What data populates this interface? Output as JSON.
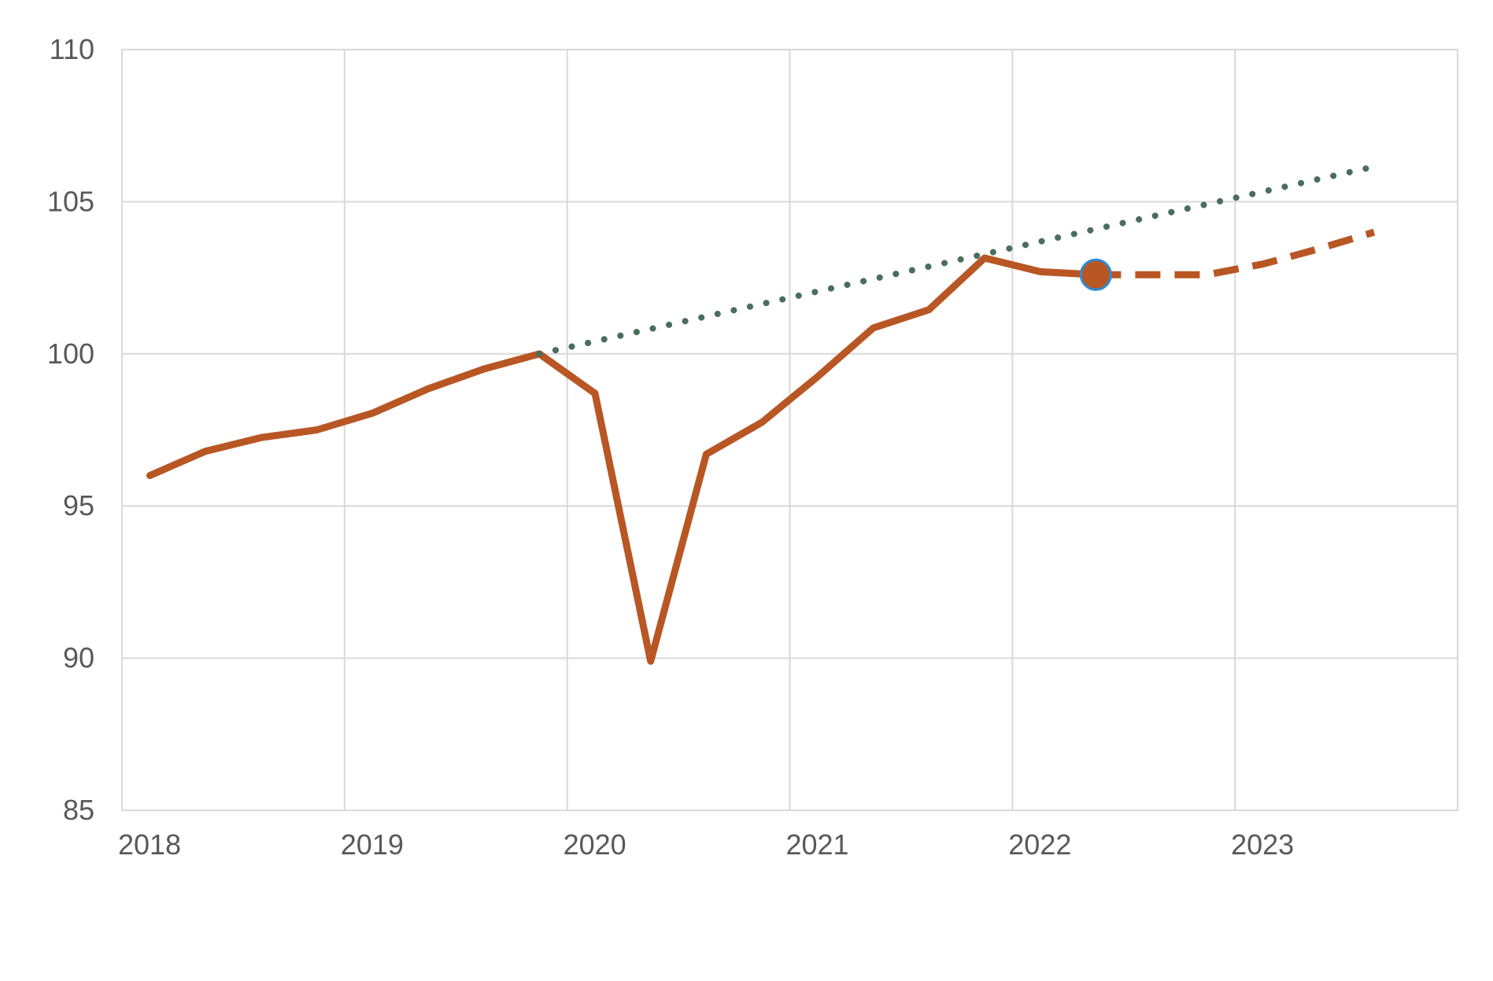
{
  "chart_data": {
    "type": "line",
    "title": "",
    "xlabel": "",
    "ylabel": "",
    "ylim": [
      85,
      110
    ],
    "yticks": [
      85,
      90,
      95,
      100,
      105,
      110
    ],
    "xlim": [
      2018,
      2024
    ],
    "xticks": [
      "2018",
      "2019",
      "2020",
      "2021",
      "2022",
      "2023"
    ],
    "grid": true,
    "legend": "none",
    "series": [
      {
        "style": "solid",
        "color": "#B85624",
        "points": [
          {
            "x": 2018.125,
            "y": 96.0
          },
          {
            "x": 2018.375,
            "y": 96.8
          },
          {
            "x": 2018.625,
            "y": 97.25
          },
          {
            "x": 2018.875,
            "y": 97.5
          },
          {
            "x": 2019.125,
            "y": 98.05
          },
          {
            "x": 2019.375,
            "y": 98.85
          },
          {
            "x": 2019.625,
            "y": 99.5
          },
          {
            "x": 2019.875,
            "y": 100.0
          },
          {
            "x": 2020.125,
            "y": 98.7
          },
          {
            "x": 2020.375,
            "y": 89.9
          },
          {
            "x": 2020.625,
            "y": 96.7
          },
          {
            "x": 2020.875,
            "y": 97.75
          },
          {
            "x": 2021.125,
            "y": 99.25
          },
          {
            "x": 2021.375,
            "y": 100.85
          },
          {
            "x": 2021.625,
            "y": 101.45
          },
          {
            "x": 2021.875,
            "y": 103.15
          },
          {
            "x": 2022.125,
            "y": 102.7
          },
          {
            "x": 2022.375,
            "y": 102.6
          }
        ]
      },
      {
        "style": "dashed",
        "color": "#B85624",
        "points": [
          {
            "x": 2022.375,
            "y": 102.6
          },
          {
            "x": 2022.625,
            "y": 102.6
          },
          {
            "x": 2022.875,
            "y": 102.6
          },
          {
            "x": 2023.125,
            "y": 102.95
          },
          {
            "x": 2023.375,
            "y": 103.45
          },
          {
            "x": 2023.625,
            "y": 104.0
          }
        ]
      },
      {
        "style": "dotted",
        "color": "#4A6E5C",
        "points": [
          {
            "x": 2019.875,
            "y": 100.0
          },
          {
            "x": 2023.625,
            "y": 106.15
          }
        ]
      }
    ],
    "marker": {
      "x": 2022.375,
      "y": 102.6,
      "fill": "#B85624",
      "stroke": "#2E8BD6"
    }
  }
}
